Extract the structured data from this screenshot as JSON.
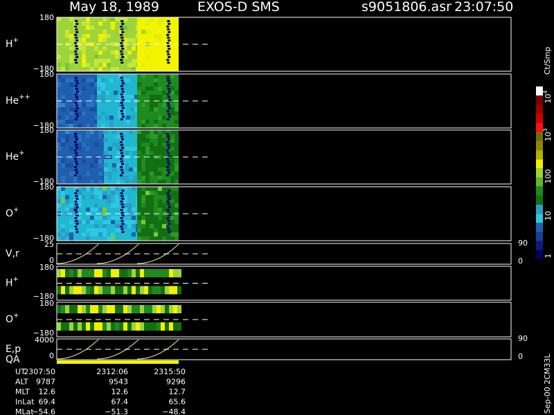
{
  "header": {
    "date": "May 18, 1989",
    "instrument": "EXOS-D SMS",
    "file": "s9051806.asr",
    "time": "23:07:50"
  },
  "panels": [
    {
      "label": "H",
      "sup": "+",
      "top": "180",
      "bottom": "−180"
    },
    {
      "label": "He",
      "sup": "++",
      "top": "180",
      "bottom": "−180"
    },
    {
      "label": "He",
      "sup": "+",
      "top": "180",
      "bottom": "−180"
    },
    {
      "label": "O",
      "sup": "+",
      "top": "180",
      "bottom": "−180"
    }
  ],
  "small_panels": [
    {
      "label": "V,r",
      "top": "25",
      "bottom": "0",
      "right_top": "90",
      "right_bottom": "0"
    },
    {
      "label": "H",
      "sup": "+",
      "top": "180",
      "bottom": "−180"
    },
    {
      "label": "O",
      "sup": "+",
      "top": "180",
      "bottom": "−180"
    },
    {
      "label": "E,p",
      "label2": "QA",
      "top": "4000",
      "bottom": "0",
      "right_top": "90",
      "right_bottom": "0"
    }
  ],
  "colorbar": {
    "unit": "Ct/Smp",
    "labels": [
      {
        "base": "10",
        "exp": "4"
      },
      {
        "base": "10",
        "exp": "3"
      },
      "100",
      "10",
      "1"
    ]
  },
  "footer": {
    "rows": [
      [
        "UT",
        "2307:50",
        "2312:06",
        "2315:50"
      ],
      [
        "ALT",
        "9787",
        "9543",
        "9296"
      ],
      [
        "MLT",
        "12.6",
        "12.6",
        "12.7"
      ],
      [
        "InLat",
        "69.4",
        "67.4",
        "65.6"
      ],
      [
        "MLat",
        "−54.6",
        "−51.3",
        "−48.4"
      ]
    ]
  },
  "side_note": "Sep-00 2CM33L"
}
